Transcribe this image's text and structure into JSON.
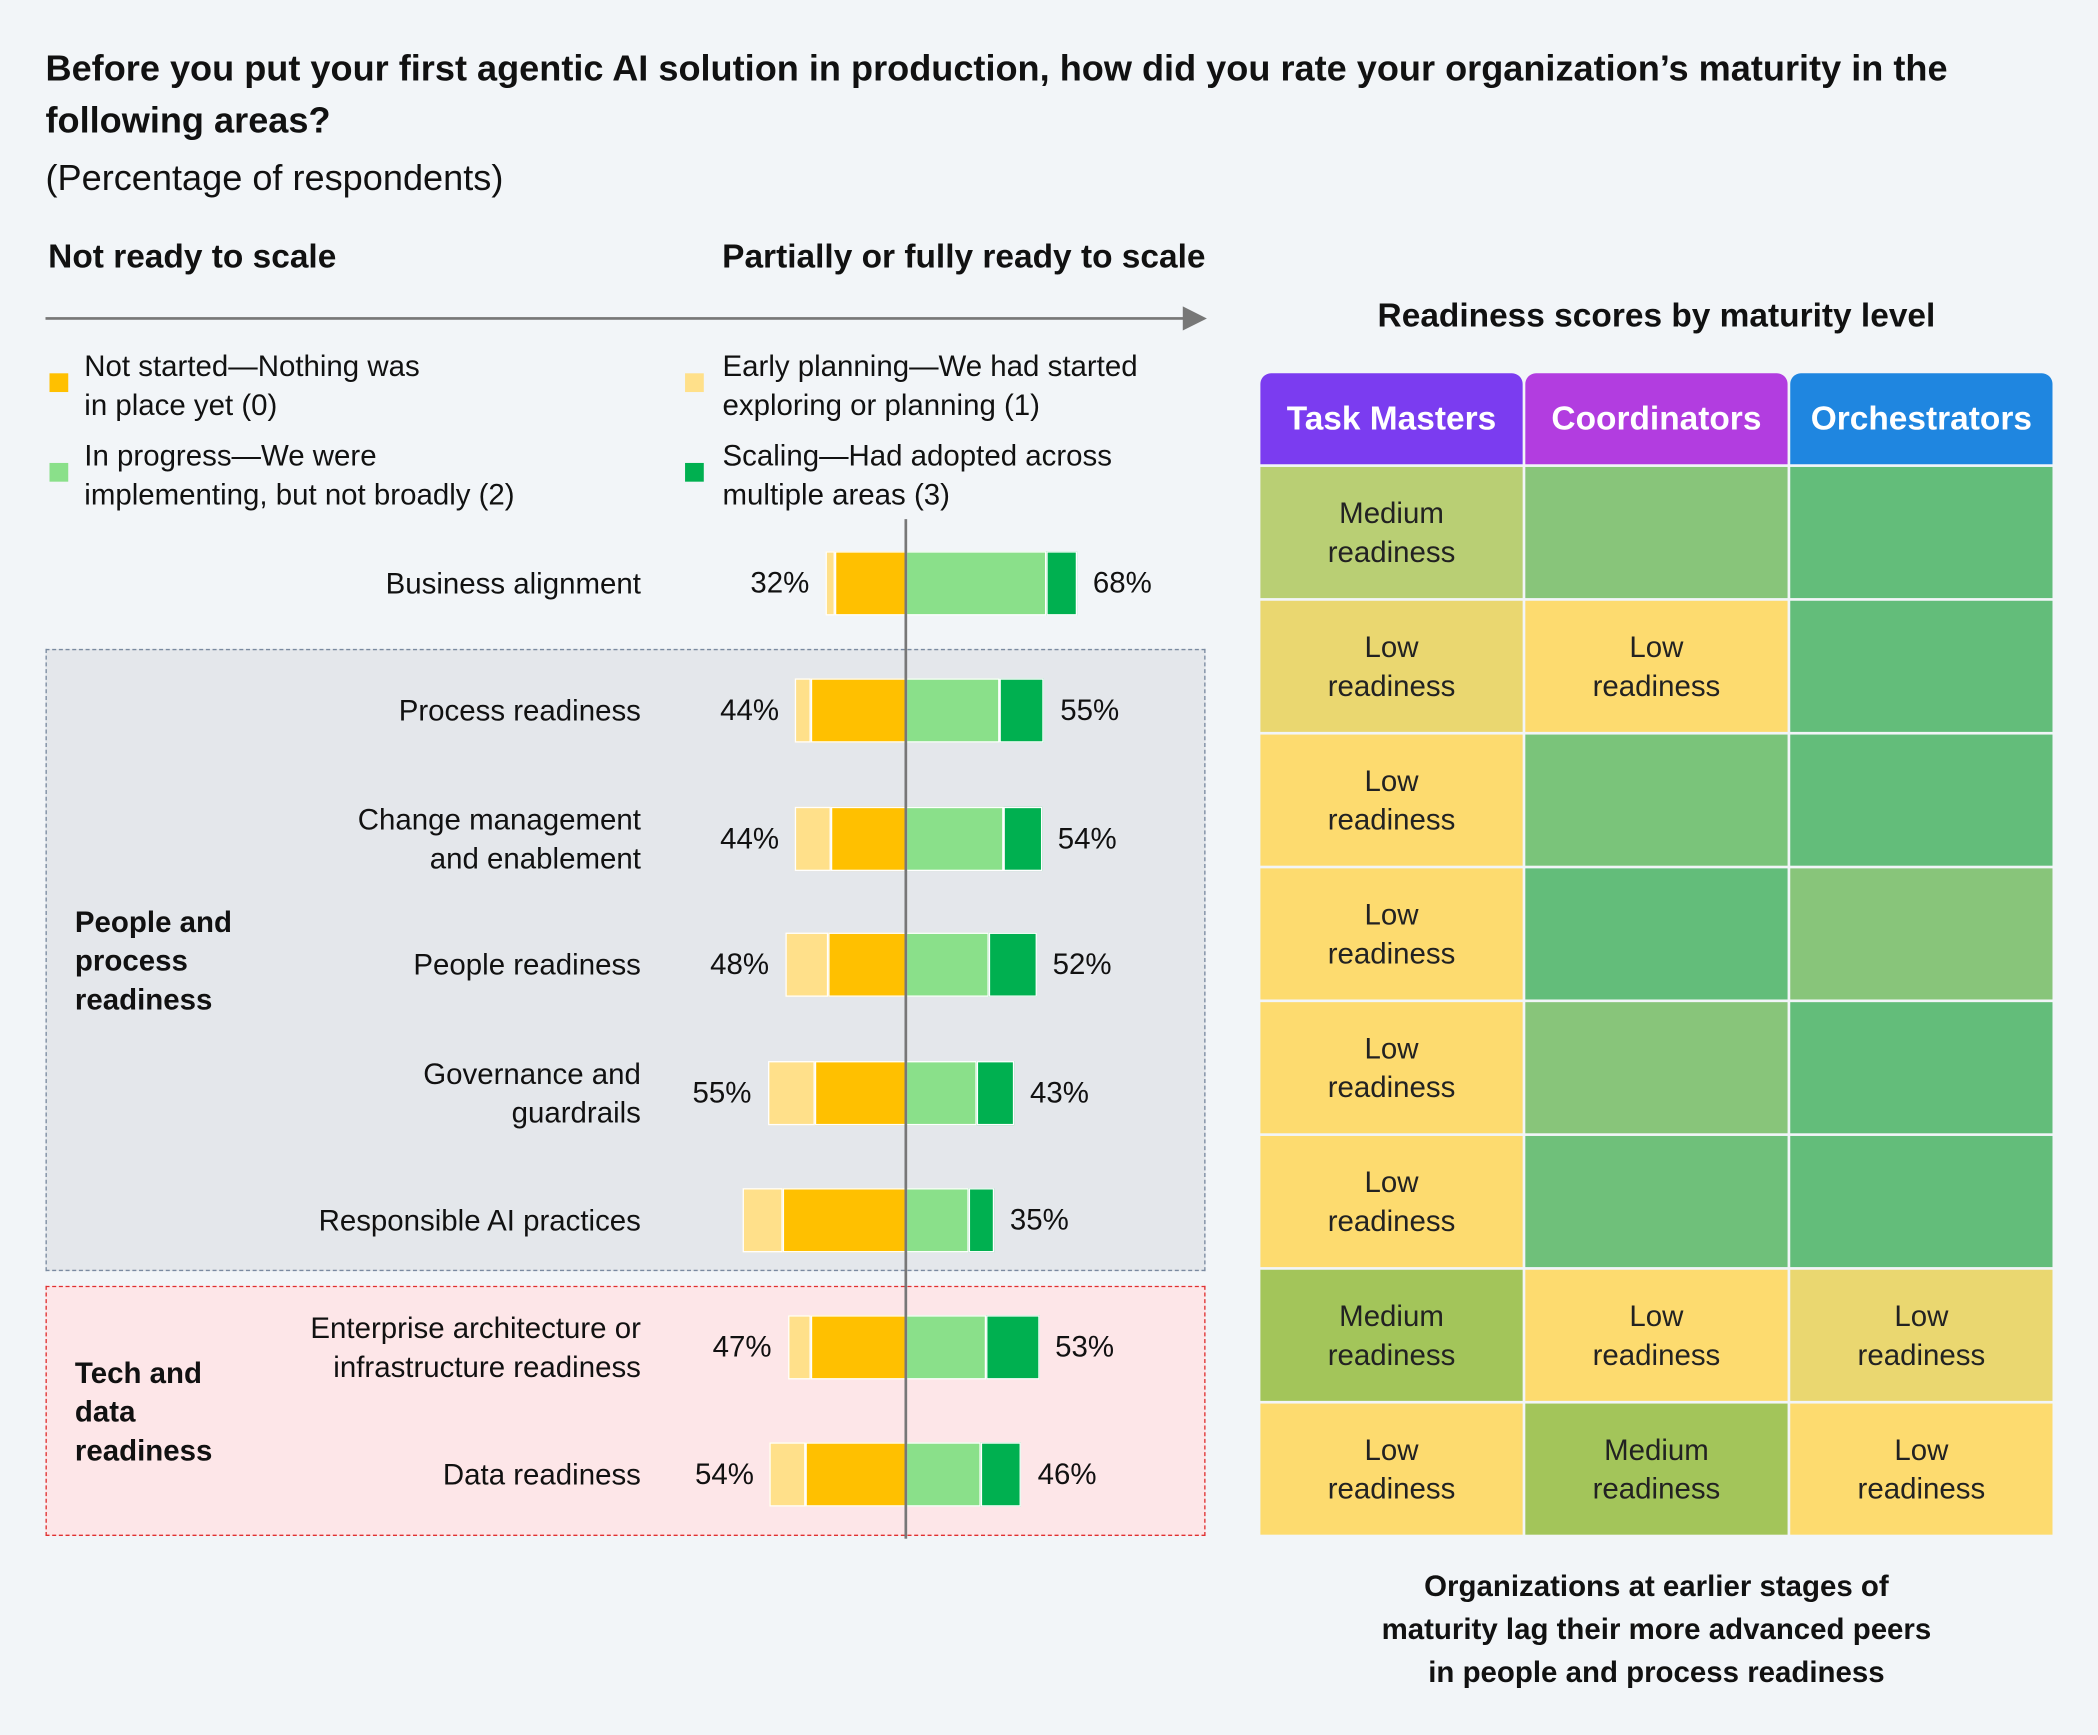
{
  "title": "Before you put your first agentic AI solution in production, how did you rate your organization’s maturity in the following areas?",
  "subtitle": "(Percentage of respondents)",
  "left_heading": "Not ready to scale",
  "right_heading": "Partially or fully ready to scale",
  "chart_data": {
    "type": "bar",
    "categories": [
      "Business alignment",
      "Process readiness",
      "Change management\nand enablement",
      "People readiness",
      "Governance and\nguardrails",
      "Responsible AI practices",
      "Enterprise architecture or\ninfrastructure readiness",
      "Data readiness"
    ],
    "series": [
      {
        "name": "Not started—Nothing was\nin place yet (0)",
        "color": "#ffc000",
        "side": "left",
        "values": [
          28,
          38,
          30,
          31,
          36,
          49,
          38,
          40
        ]
      },
      {
        "name": "Early planning—We had started\nexploring or planning (1)",
        "color": "#ffe08a",
        "side": "left",
        "values": [
          4,
          6,
          14,
          17,
          19,
          16,
          9,
          14
        ]
      },
      {
        "name": "In progress—We were\nimplementing, but not broadly (2)",
        "color": "#8ae08a",
        "side": "right",
        "values": [
          56,
          37,
          39,
          33,
          28,
          25,
          32,
          30
        ]
      },
      {
        "name": "Scaling—Had adopted across\nmultiple areas (3)",
        "color": "#00b050",
        "side": "right",
        "values": [
          12,
          18,
          15,
          19,
          15,
          10,
          21,
          16
        ]
      }
    ],
    "left_totals": {
      "values": [
        32,
        44,
        44,
        48,
        55,
        null,
        47,
        54
      ],
      "value_labels": [
        "32%",
        "44%",
        "44%",
        "48%",
        "55%",
        null,
        "47%",
        "54%"
      ]
    },
    "right_totals": {
      "values": [
        68,
        55,
        54,
        52,
        43,
        35,
        53,
        46
      ],
      "value_labels": [
        "68%",
        "55%",
        "54%",
        "52%",
        "43%",
        "35%",
        "53%",
        "46%"
      ]
    },
    "groups": [
      {
        "label": "People and process readiness",
        "rows": [
          1,
          2,
          3,
          4,
          5
        ],
        "fill": "#e4e7eb",
        "border": "#7a8aa0"
      },
      {
        "label": "Tech and data readiness",
        "rows": [
          6,
          7
        ],
        "fill": "#fde6e8",
        "border": "#e03030"
      }
    ]
  },
  "heatmap": {
    "title": "Readiness scores by maturity level",
    "columns": [
      {
        "name": "Task Masters",
        "color": "#7b3cf0"
      },
      {
        "name": "Coordinators",
        "color": "#b23de0"
      },
      {
        "name": "Orchestrators",
        "color": "#1f86e0"
      }
    ],
    "cells": [
      [
        {
          "color": "#b9cf74",
          "label": "Medium readiness"
        },
        {
          "color": "#88c57a",
          "label": null
        },
        {
          "color": "#63bd7a",
          "label": null
        }
      ],
      [
        {
          "color": "#ead770",
          "label": "Low readiness"
        },
        {
          "color": "#fddb6f",
          "label": "Low readiness"
        },
        {
          "color": "#63bd7a",
          "label": null
        }
      ],
      [
        {
          "color": "#fddb6f",
          "label": "Low readiness"
        },
        {
          "color": "#7ac47a",
          "label": null
        },
        {
          "color": "#63bd7a",
          "label": null
        }
      ],
      [
        {
          "color": "#fddb6f",
          "label": "Low readiness"
        },
        {
          "color": "#63bd7a",
          "label": null
        },
        {
          "color": "#88c57a",
          "label": null
        }
      ],
      [
        {
          "color": "#fddb6f",
          "label": "Low readiness"
        },
        {
          "color": "#88c57a",
          "label": null
        },
        {
          "color": "#63bd7a",
          "label": null
        }
      ],
      [
        {
          "color": "#fddb6f",
          "label": "Low readiness"
        },
        {
          "color": "#6fc07a",
          "label": null
        },
        {
          "color": "#63bd7a",
          "label": null
        }
      ],
      [
        {
          "color": "#a3c55a",
          "label": "Medium readiness"
        },
        {
          "color": "#fddb6f",
          "label": "Low readiness"
        },
        {
          "color": "#ead770",
          "label": "Low readiness"
        }
      ],
      [
        {
          "color": "#fddb6f",
          "label": "Low readiness"
        },
        {
          "color": "#a3c55a",
          "label": "Medium readiness"
        },
        {
          "color": "#fddb6f",
          "label": "Low readiness"
        }
      ]
    ]
  },
  "footnote": "Organizations at earlier stages of\nmaturity lag their more advanced peers\nin people and process readiness"
}
